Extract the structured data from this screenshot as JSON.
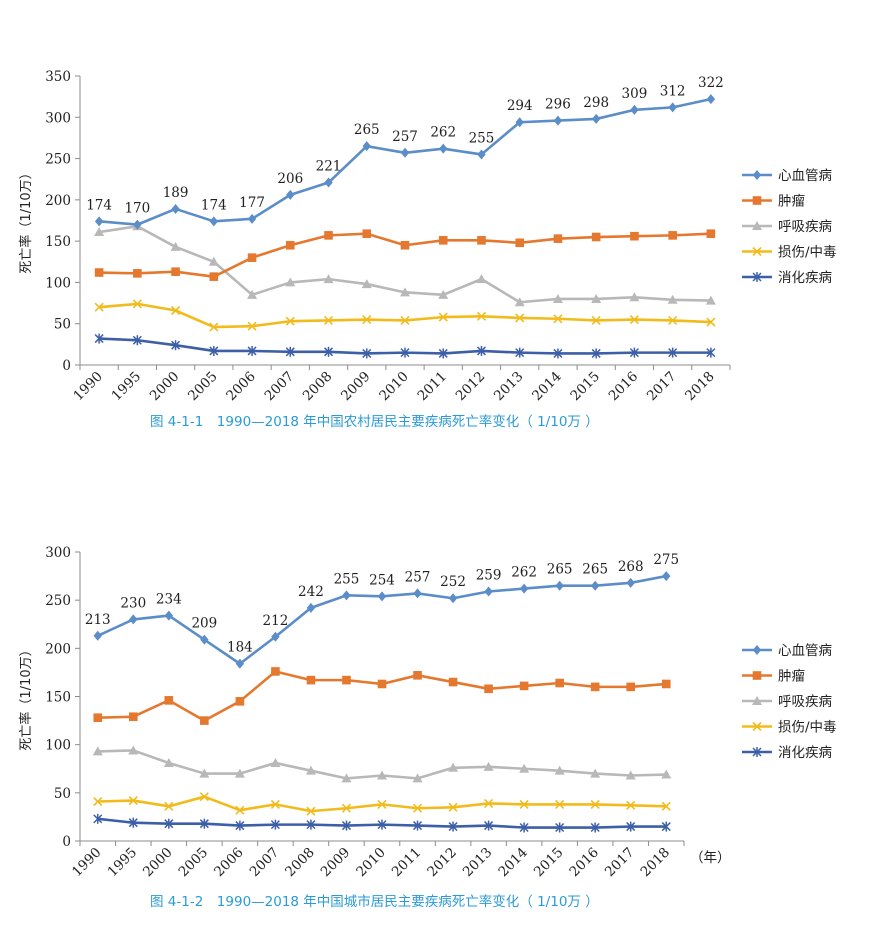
{
  "chart_data": [
    {
      "type": "line",
      "title": "图 4-1-1　1990—2018 年中国农村居民主要疾病死亡率变化（ 1/10万 ）",
      "xlabel": "",
      "ylabel": "死亡率（1/10万）",
      "ylim": [
        0,
        350
      ],
      "yticks": [
        "0",
        "50",
        "100",
        "150",
        "200",
        "250",
        "300",
        "350"
      ],
      "categories": [
        "1990",
        "1995",
        "2000",
        "2005",
        "2006",
        "2007",
        "2008",
        "2009",
        "2010",
        "2011",
        "2012",
        "2013",
        "2014",
        "2015",
        "2016",
        "2017",
        "2018"
      ],
      "legend_position": "right",
      "grid": false,
      "series": [
        {
          "name": "心血管病",
          "color": "#5b8dc9",
          "marker": "diamond",
          "labeled": true,
          "values": [
            174,
            170,
            189,
            174,
            177,
            206,
            221,
            265,
            257,
            262,
            255,
            294,
            296,
            298,
            309,
            312,
            322
          ],
          "labels": [
            "174",
            "170",
            "189",
            "174",
            "177",
            "206",
            "221",
            "265",
            "257",
            "262",
            "255",
            "294",
            "296",
            "298",
            "309",
            "312",
            "322"
          ]
        },
        {
          "name": "肿瘤",
          "color": "#e5782f",
          "marker": "square",
          "labeled": false,
          "values": [
            112,
            111,
            113,
            107,
            130,
            145,
            157,
            159,
            145,
            151,
            151,
            148,
            153,
            155,
            156,
            157,
            159
          ]
        },
        {
          "name": "呼吸疾病",
          "color": "#b8b8b8",
          "marker": "triangle",
          "labeled": false,
          "values": [
            161,
            168,
            143,
            125,
            85,
            100,
            104,
            98,
            88,
            85,
            104,
            76,
            80,
            80,
            82,
            79,
            78
          ]
        },
        {
          "name": "损伤/中毒",
          "color": "#f2bb1c",
          "marker": "x",
          "labeled": false,
          "values": [
            70,
            74,
            66,
            46,
            47,
            53,
            54,
            55,
            54,
            58,
            59,
            57,
            56,
            54,
            55,
            54,
            52
          ]
        },
        {
          "name": "消化疾病",
          "color": "#3d5fa8",
          "marker": "star",
          "labeled": false,
          "values": [
            32,
            30,
            24,
            17,
            17,
            16,
            16,
            14,
            15,
            14,
            17,
            15,
            14,
            14,
            15,
            15,
            15
          ]
        }
      ]
    },
    {
      "type": "line",
      "title": "图 4-1-2　1990—2018 年中国城市居民主要疾病死亡率变化（ 1/10万 ）",
      "xlabel": "（年）",
      "ylabel": "死亡率（1/10万）",
      "ylim": [
        0,
        300
      ],
      "yticks": [
        "0",
        "50",
        "100",
        "150",
        "200",
        "250",
        "300"
      ],
      "categories": [
        "1990",
        "1995",
        "2000",
        "2005",
        "2006",
        "2007",
        "2008",
        "2009",
        "2010",
        "2011",
        "2012",
        "2013",
        "2014",
        "2015",
        "2016",
        "2017",
        "2018"
      ],
      "legend_position": "right",
      "grid": false,
      "series": [
        {
          "name": "心血管病",
          "color": "#5b8dc9",
          "marker": "diamond",
          "labeled": true,
          "values": [
            213,
            230,
            234,
            209,
            184,
            212,
            242,
            255,
            254,
            257,
            252,
            259,
            262,
            265,
            265,
            268,
            275
          ],
          "labels": [
            "213",
            "230",
            "234",
            "209",
            "184",
            "212",
            "242",
            "255",
            "254",
            "257",
            "252",
            "259",
            "262",
            "265",
            "265",
            "268",
            "275"
          ]
        },
        {
          "name": "肿瘤",
          "color": "#e5782f",
          "marker": "square",
          "labeled": false,
          "values": [
            128,
            129,
            146,
            125,
            145,
            176,
            167,
            167,
            163,
            172,
            165,
            158,
            161,
            164,
            160,
            160,
            163
          ]
        },
        {
          "name": "呼吸疾病",
          "color": "#b8b8b8",
          "marker": "triangle",
          "labeled": false,
          "values": [
            93,
            94,
            81,
            70,
            70,
            81,
            73,
            65,
            68,
            65,
            76,
            77,
            75,
            73,
            70,
            68,
            69
          ]
        },
        {
          "name": "损伤/中毒",
          "color": "#f2bb1c",
          "marker": "x",
          "labeled": false,
          "values": [
            41,
            42,
            36,
            46,
            32,
            38,
            31,
            34,
            38,
            34,
            35,
            39,
            38,
            38,
            38,
            37,
            36
          ]
        },
        {
          "name": "消化疾病",
          "color": "#3d5fa8",
          "marker": "star",
          "labeled": false,
          "values": [
            23,
            19,
            18,
            18,
            16,
            17,
            17,
            16,
            17,
            16,
            15,
            16,
            14,
            14,
            14,
            15,
            15
          ]
        }
      ]
    }
  ]
}
